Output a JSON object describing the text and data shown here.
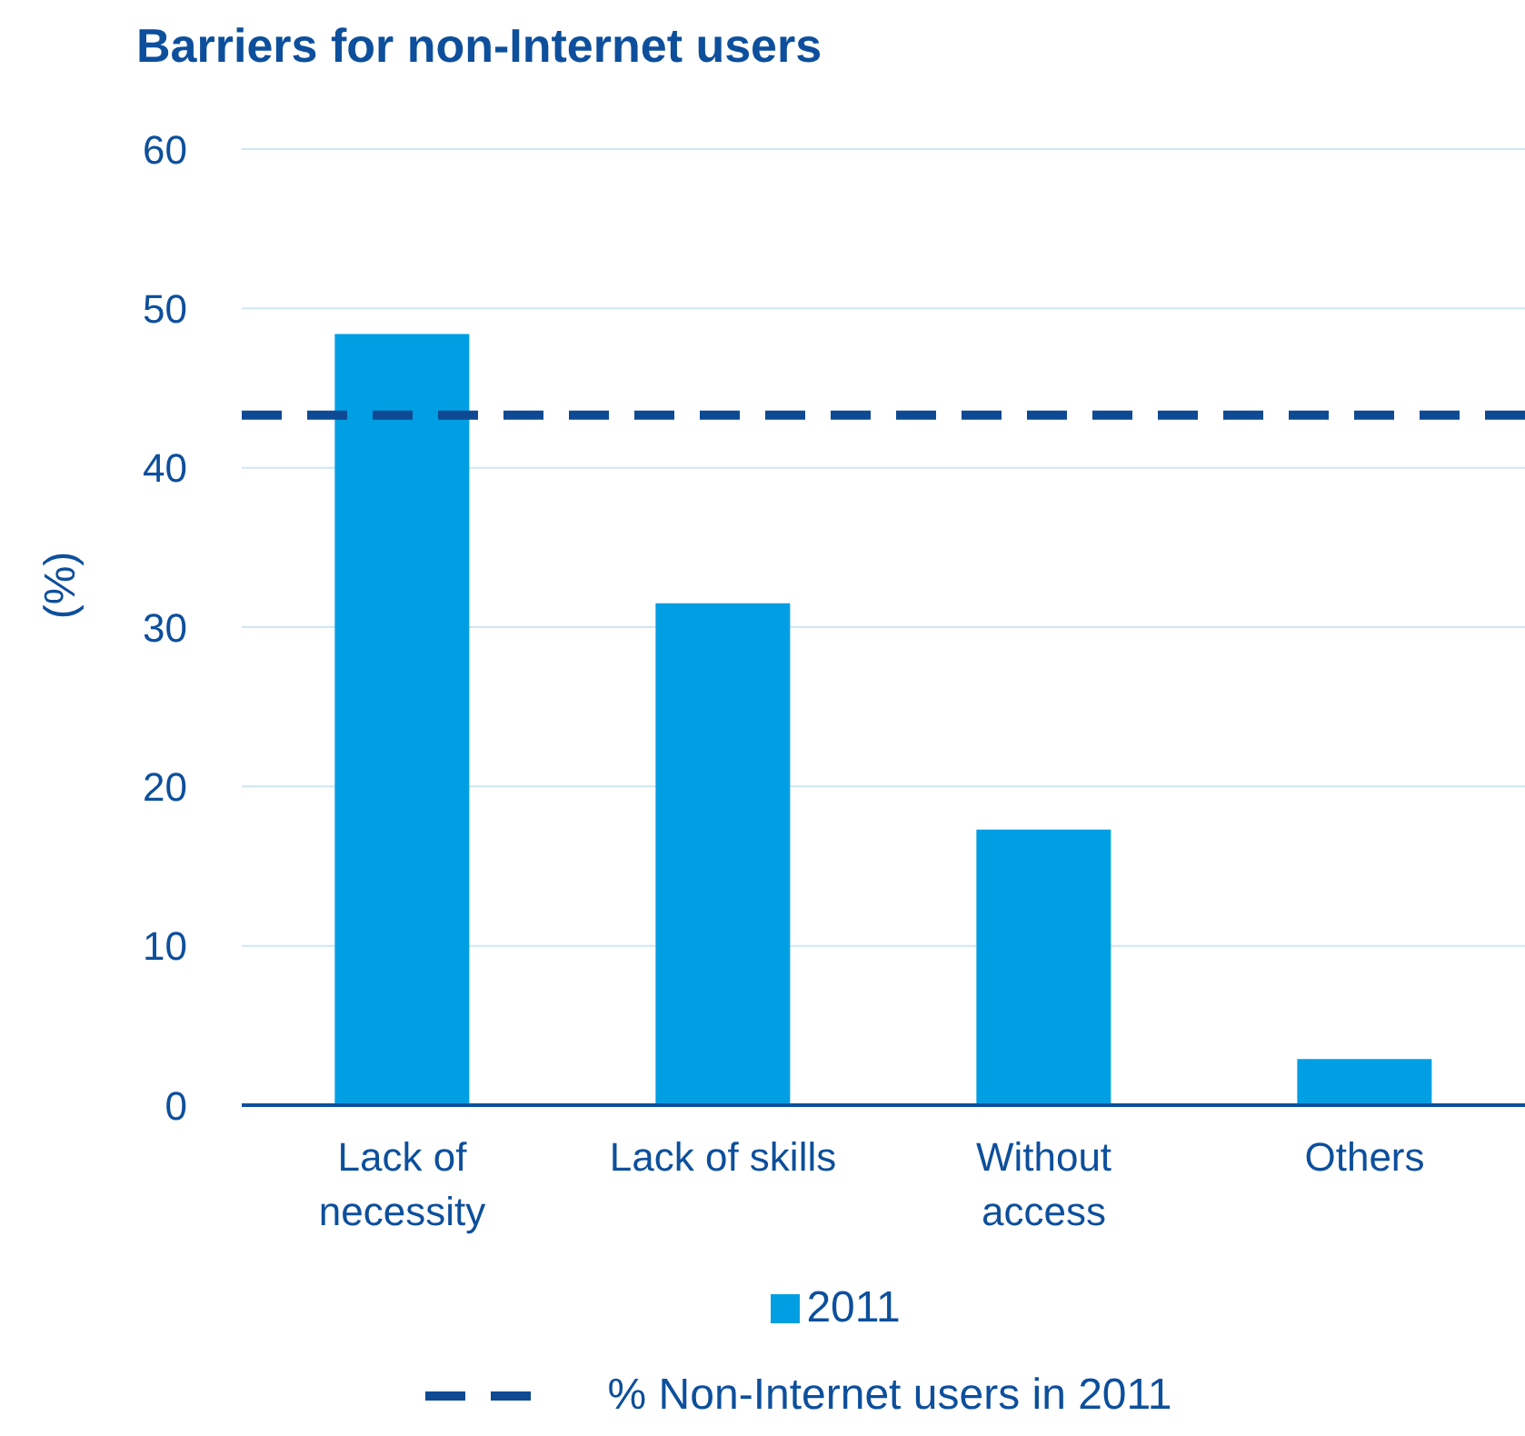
{
  "chart_data": {
    "type": "bar",
    "title": "Barriers for non-Internet users",
    "ylabel": "(%)",
    "categories": [
      "Lack of necessity",
      "Lack of skills",
      "Without access",
      "Others"
    ],
    "series": [
      {
        "name": "2011",
        "color": "#009fe3",
        "values": [
          48.4,
          31.5,
          17.3,
          2.9
        ]
      }
    ],
    "ylim": [
      0,
      60
    ],
    "yticks": [
      0,
      10,
      20,
      30,
      40,
      50,
      60
    ],
    "grid": "y",
    "legend": "bottom",
    "ref_lines": [
      {
        "axis": "y",
        "value": 43.3,
        "label": "% Non-Internet users in 2011",
        "color": "#0d4a93",
        "line_style": "dashed"
      }
    ]
  }
}
